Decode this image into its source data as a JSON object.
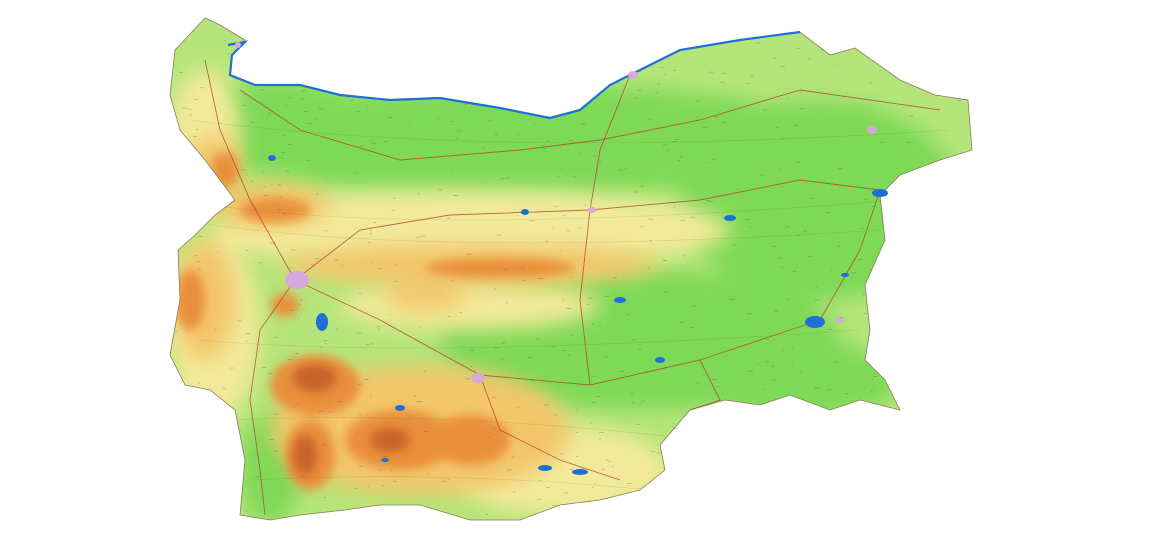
{
  "map": {
    "region": "Bulgaria",
    "style": "physical relief map",
    "colors": {
      "background": "#ffffff",
      "lowland": "#7ed957",
      "plain": "#b5e57a",
      "hill": "#f2ea9a",
      "upland": "#f3c66a",
      "mountain": "#e98f3a",
      "high_peak": "#c9622a",
      "water": "#1e6fd6",
      "river": "#3a7ae0",
      "road": "#b23a2a",
      "city": "#d9a7d9"
    },
    "icons": [
      "lake-icon",
      "city-marker-icon"
    ]
  }
}
